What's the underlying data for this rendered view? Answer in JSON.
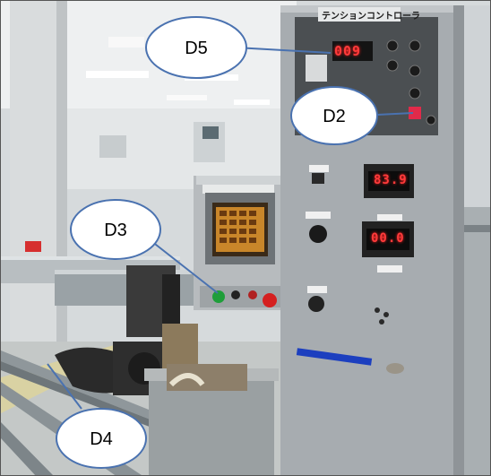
{
  "photo": {
    "panel_title": "テンションコントローラ",
    "display_top": "009",
    "display_mid": "83.9",
    "display_low": "00.0"
  },
  "callouts": [
    {
      "id": "d5",
      "label": "D5"
    },
    {
      "id": "d2",
      "label": "D2"
    },
    {
      "id": "d3",
      "label": "D3"
    },
    {
      "id": "d4",
      "label": "D4"
    }
  ],
  "colors": {
    "callout_fill": "#ffffff",
    "callout_stroke": "#4a72b0",
    "leader_line": "#4a72b0",
    "panel_gray": "#a7acb0",
    "display_red": "#ff3b3b"
  }
}
